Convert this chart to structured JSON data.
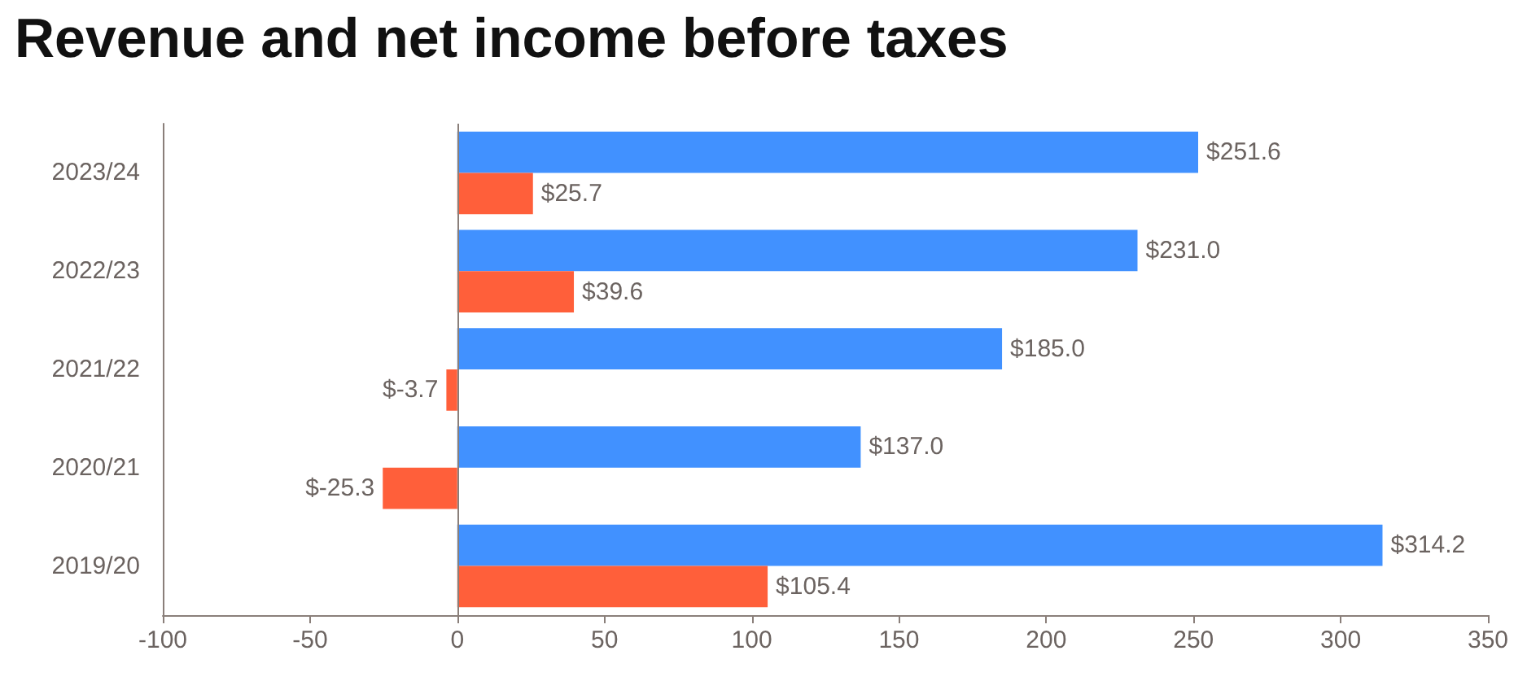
{
  "chart_data": {
    "type": "bar",
    "orientation": "horizontal",
    "title": "Revenue and net income before taxes",
    "categories": [
      "2023/24",
      "2022/23",
      "2021/22",
      "2020/21",
      "2019/20"
    ],
    "series": [
      {
        "color": "#4191ff",
        "values": [
          251.6,
          231.0,
          185.0,
          137.0,
          314.2
        ],
        "value_labels": [
          "$251.6",
          "$231.0",
          "$185.0",
          "$137.0",
          "$314.2"
        ]
      },
      {
        "color": "#ff5f3a",
        "values": [
          25.7,
          39.6,
          -3.7,
          -25.3,
          105.4
        ],
        "value_labels": [
          "$25.7",
          "$39.6",
          "$-3.7",
          "$-25.3",
          "$105.4"
        ]
      }
    ],
    "xlim": [
      -100,
      350
    ],
    "xticks": [
      -100,
      -50,
      0,
      50,
      100,
      150,
      200,
      250,
      300,
      350
    ],
    "ref_lines": [
      {
        "axis": "x",
        "value": 0,
        "color": "#8a7f7a"
      }
    ]
  }
}
